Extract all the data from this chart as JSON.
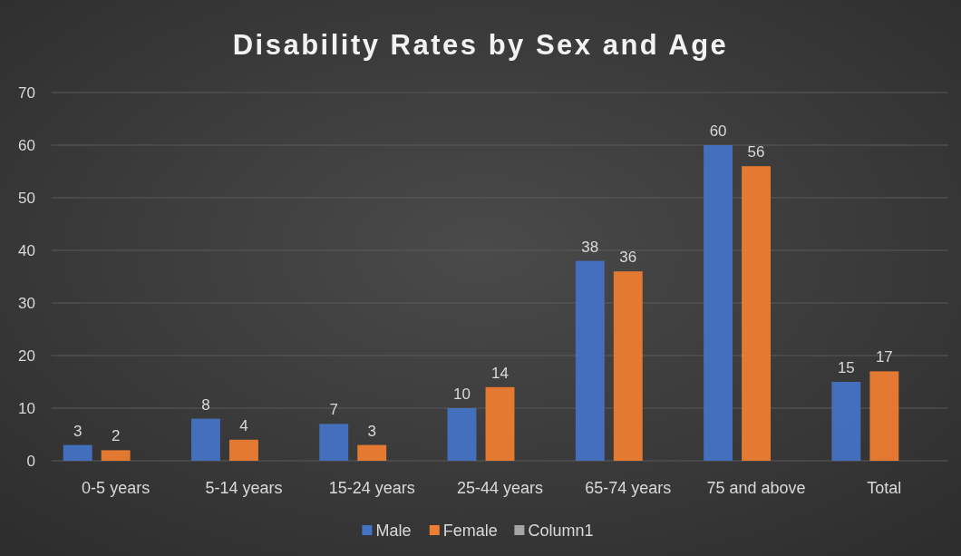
{
  "chart_data": {
    "type": "bar",
    "title": "Disability Rates by Sex and Age",
    "categories": [
      "0-5 years",
      "5-14 years",
      "15-24 years",
      "25-44 years",
      "65-74 years",
      "75 and above",
      "Total"
    ],
    "series": [
      {
        "name": "Male",
        "color": "#4472c4",
        "values": [
          3,
          8,
          7,
          10,
          38,
          60,
          15
        ]
      },
      {
        "name": "Female",
        "color": "#ed7d31",
        "values": [
          2,
          4,
          3,
          14,
          36,
          56,
          17
        ]
      },
      {
        "name": "Column1",
        "color": "#a5a5a5",
        "values": [
          null,
          null,
          null,
          null,
          null,
          null,
          null
        ]
      }
    ],
    "ylim": [
      0,
      70
    ],
    "yticks": [
      0,
      10,
      20,
      30,
      40,
      50,
      60,
      70
    ],
    "grid": "y",
    "legend": "bottom",
    "data_labels": true
  }
}
